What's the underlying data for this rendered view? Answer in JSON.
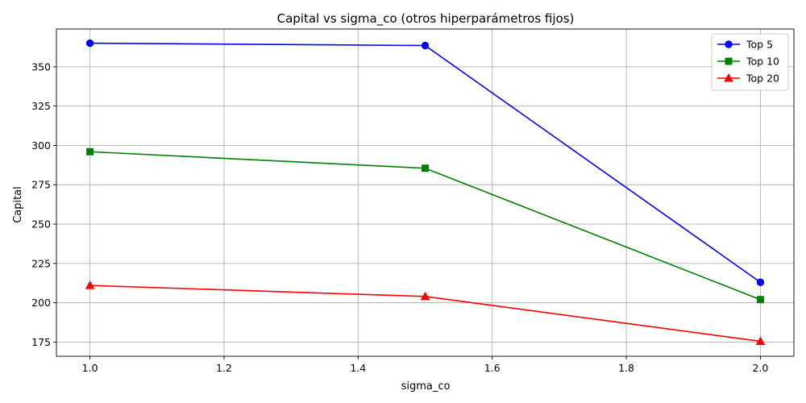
{
  "chart_data": {
    "type": "line",
    "title": "Capital vs sigma_co (otros hiperparámetros fijos)",
    "xlabel": "sigma_co",
    "ylabel": "Capital",
    "x": [
      1.0,
      1.5,
      2.0
    ],
    "xlim": [
      0.95,
      2.05
    ],
    "ylim": [
      166,
      374
    ],
    "xticks": [
      1.0,
      1.2,
      1.4,
      1.6,
      1.8,
      2.0
    ],
    "xtick_labels": [
      "1.0",
      "1.2",
      "1.4",
      "1.6",
      "1.8",
      "2.0"
    ],
    "yticks": [
      175,
      200,
      225,
      250,
      275,
      300,
      325,
      350
    ],
    "ytick_labels": [
      "175",
      "200",
      "225",
      "250",
      "275",
      "300",
      "325",
      "350"
    ],
    "grid": true,
    "legend_position": "top-right",
    "series": [
      {
        "name": "Top 5",
        "values": [
          365,
          363.5,
          213
        ],
        "color": "#0000ff",
        "marker": "circle"
      },
      {
        "name": "Top 10",
        "values": [
          296,
          285.5,
          202
        ],
        "color": "#008000",
        "marker": "square"
      },
      {
        "name": "Top 20",
        "values": [
          211,
          204,
          175.5
        ],
        "color": "#ff0000",
        "marker": "triangle"
      }
    ]
  }
}
